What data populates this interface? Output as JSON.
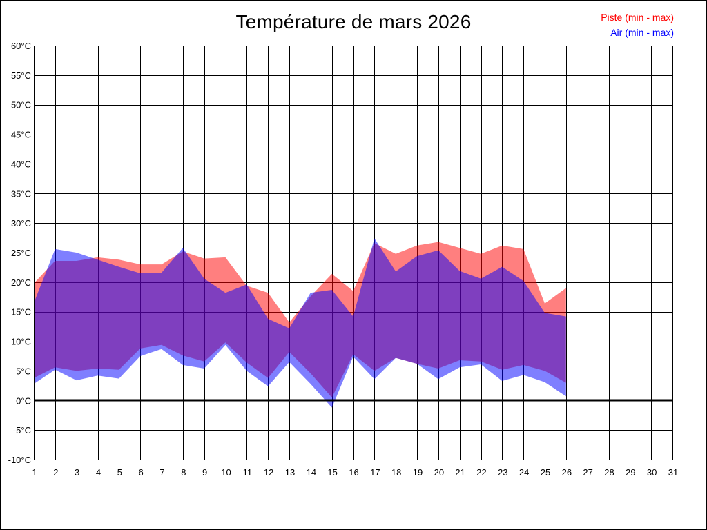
{
  "chart_data": {
    "type": "area",
    "title": "Température de mars 2026",
    "xlabel": "",
    "ylabel": "",
    "x": [
      1,
      2,
      3,
      4,
      5,
      6,
      7,
      8,
      9,
      10,
      11,
      12,
      13,
      14,
      15,
      16,
      17,
      18,
      19,
      20,
      21,
      22,
      23,
      24,
      25,
      26
    ],
    "xlim": [
      1,
      31
    ],
    "ylim": [
      -10,
      60
    ],
    "x_ticks": [
      "1",
      "2",
      "3",
      "4",
      "5",
      "6",
      "7",
      "8",
      "9",
      "10",
      "11",
      "12",
      "13",
      "14",
      "15",
      "16",
      "17",
      "18",
      "19",
      "20",
      "21",
      "22",
      "23",
      "24",
      "25",
      "26",
      "27",
      "28",
      "29",
      "30",
      "31"
    ],
    "y_ticks": [
      "60°C",
      "55°C",
      "50°C",
      "45°C",
      "40°C",
      "35°C",
      "30°C",
      "25°C",
      "20°C",
      "15°C",
      "10°C",
      "5°C",
      "0°C",
      "-5°C",
      "-10°C"
    ],
    "y_tick_values": [
      60,
      55,
      50,
      45,
      40,
      35,
      30,
      25,
      20,
      15,
      10,
      5,
      0,
      -5,
      -10
    ],
    "grid": true,
    "zero_line": true,
    "legend_position": "top-right",
    "series": [
      {
        "name": "Piste (min - max)",
        "color": "#ff0000",
        "min": [
          3.8,
          5.6,
          5.0,
          5.4,
          5.2,
          8.8,
          9.4,
          7.6,
          6.6,
          9.8,
          6.4,
          3.8,
          8.2,
          4.6,
          0.5,
          7.8,
          5.0,
          7.2,
          6.2,
          5.4,
          6.8,
          6.6,
          5.2,
          6.0,
          5.0,
          3.0
        ],
        "max": [
          19.8,
          23.6,
          23.6,
          24.2,
          23.8,
          23.0,
          23.0,
          25.2,
          24.0,
          24.2,
          19.4,
          18.2,
          13.2,
          17.6,
          21.4,
          18.5,
          26.6,
          24.8,
          26.2,
          26.8,
          25.8,
          24.8,
          26.2,
          25.6,
          16.4,
          19.0
        ]
      },
      {
        "name": "Air (min - max)",
        "color": "#0000ff",
        "min": [
          2.8,
          5.2,
          3.4,
          4.2,
          3.7,
          7.5,
          8.7,
          6.0,
          5.4,
          9.4,
          5.0,
          2.4,
          6.5,
          2.8,
          -1.2,
          7.4,
          3.6,
          7.2,
          6.2,
          3.6,
          5.6,
          6.1,
          3.3,
          4.3,
          3.1,
          0.7
        ],
        "max": [
          16.5,
          25.6,
          25.0,
          23.8,
          22.6,
          21.5,
          21.6,
          25.8,
          20.6,
          18.2,
          19.6,
          13.8,
          12.2,
          18.2,
          18.7,
          14.2,
          27.4,
          21.8,
          24.4,
          25.4,
          21.9,
          20.6,
          22.6,
          20.2,
          14.8,
          14.2
        ]
      }
    ]
  }
}
